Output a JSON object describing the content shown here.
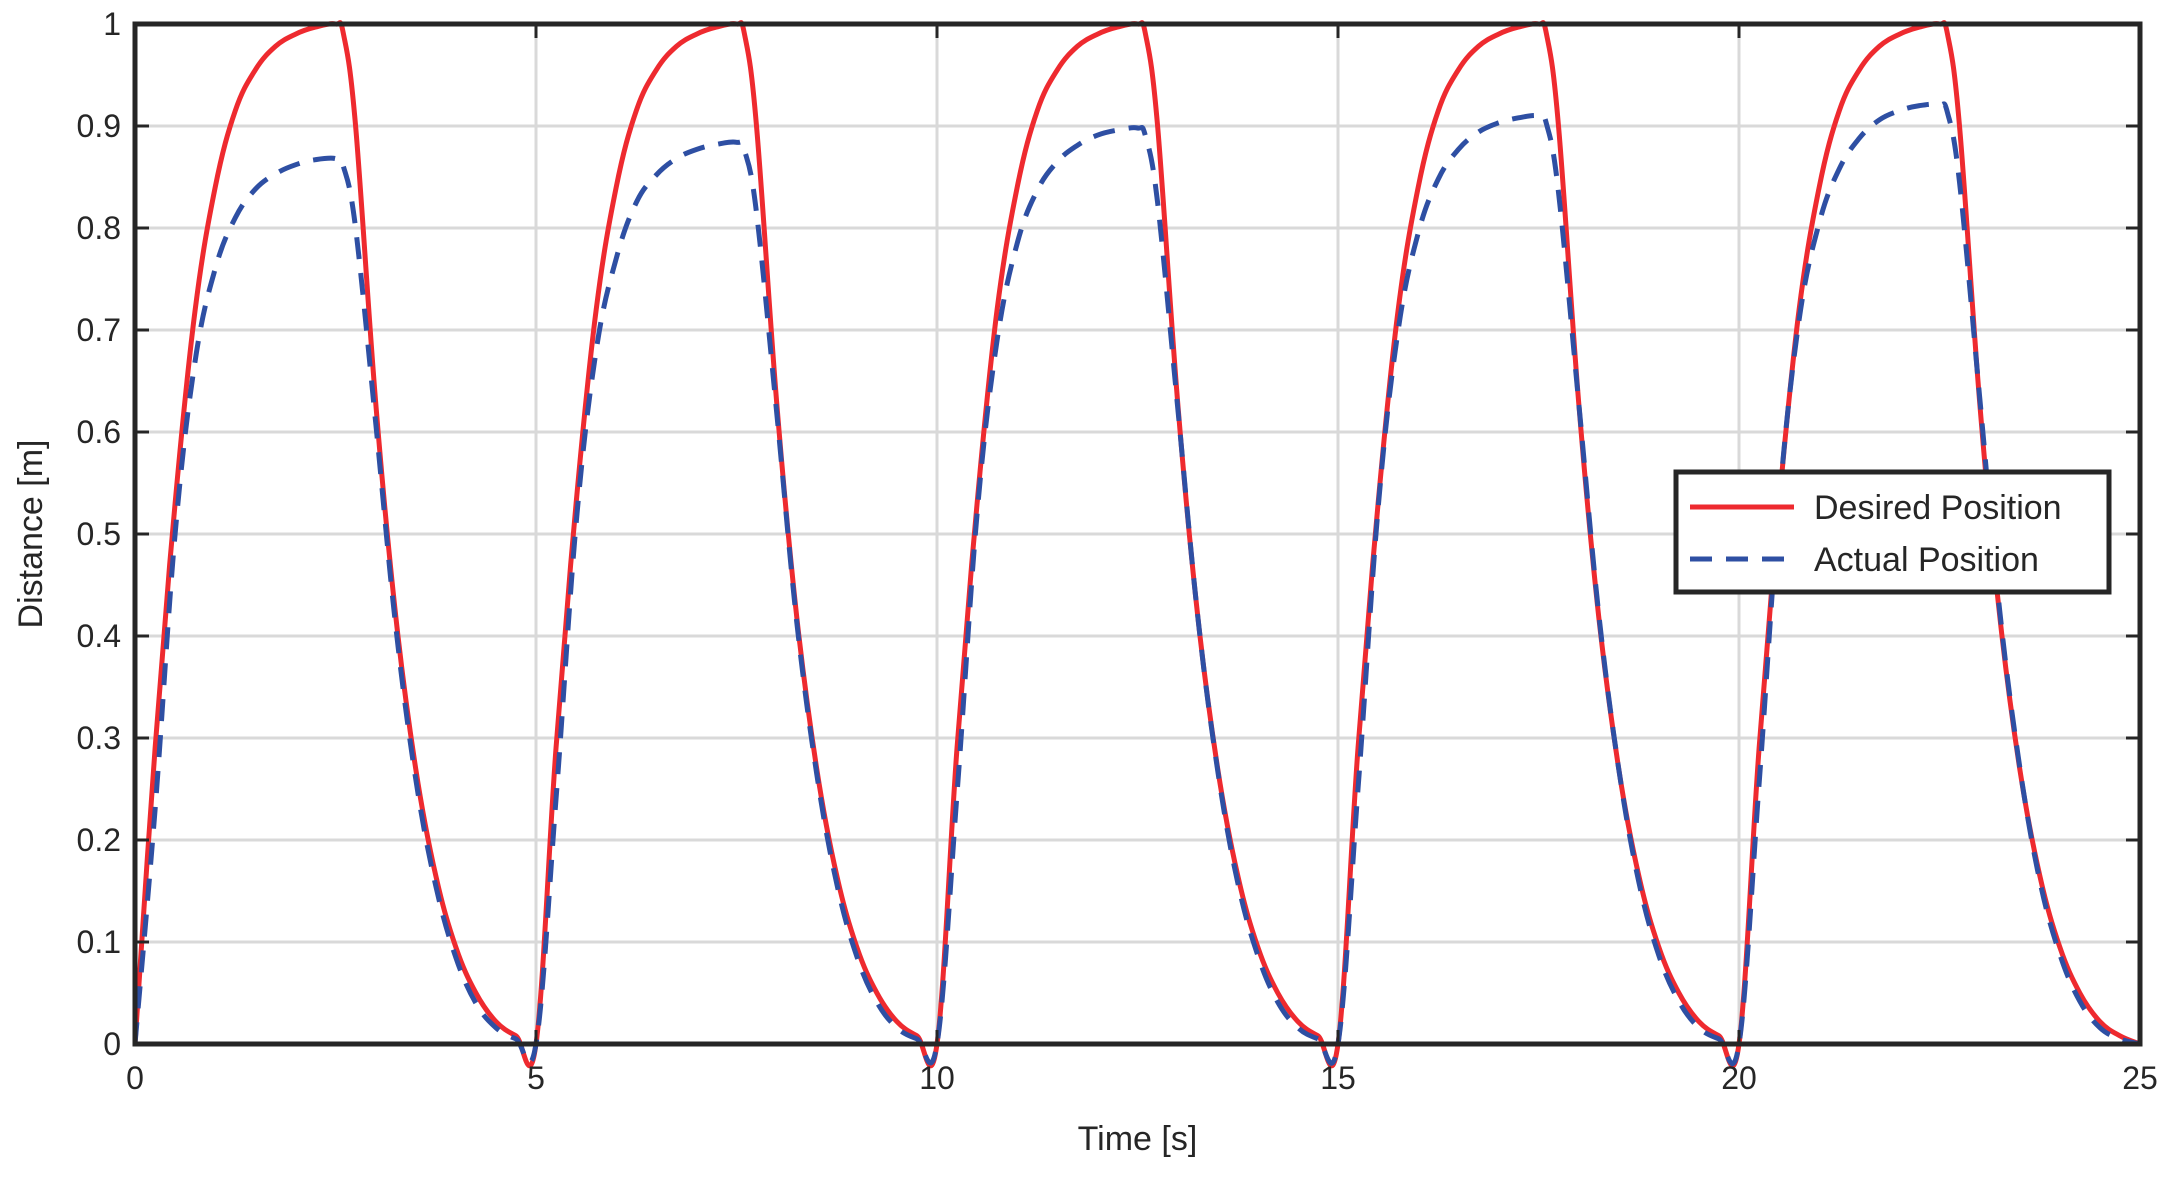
{
  "chart_data": {
    "type": "line",
    "title": "",
    "xlabel": "Time [s]",
    "ylabel": "Distance [m]",
    "xlim": [
      0,
      25
    ],
    "ylim": [
      0,
      1
    ],
    "xticks": [
      "0",
      "5",
      "10",
      "15",
      "20",
      "25"
    ],
    "yticks": [
      "0",
      "0.1",
      "0.2",
      "0.3",
      "0.4",
      "0.5",
      "0.6",
      "0.7",
      "0.8",
      "0.9",
      "1"
    ],
    "grid": true,
    "legend_position": "center-right",
    "period": 5,
    "series": [
      {
        "name": "Desired Position",
        "color": "#ee2a2f",
        "style": "solid",
        "x": [
          0,
          0.25,
          0.5,
          0.75,
          1.0,
          1.25,
          1.5,
          1.75,
          2.0,
          2.25,
          2.5,
          2.6,
          2.75,
          3.0,
          3.25,
          3.5,
          3.75,
          4.0,
          4.25,
          4.5,
          4.75,
          5.0,
          5.25,
          5.5,
          5.75,
          6.0,
          6.25,
          6.5,
          6.75,
          7.0,
          7.25,
          7.5,
          7.6,
          7.75,
          8.0,
          8.25,
          8.5,
          8.75,
          9.0,
          9.25,
          9.5,
          9.75,
          10.0,
          10.25,
          10.5,
          10.75,
          11.0,
          11.25,
          11.5,
          11.75,
          12.0,
          12.25,
          12.5,
          12.6,
          12.75,
          13.0,
          13.25,
          13.5,
          13.75,
          14.0,
          14.25,
          14.5,
          14.75,
          15.0,
          15.25,
          15.5,
          15.75,
          16.0,
          16.25,
          16.5,
          16.75,
          17.0,
          17.25,
          17.5,
          17.6,
          17.75,
          18.0,
          18.25,
          18.5,
          18.75,
          19.0,
          19.25,
          19.5,
          19.75,
          20.0,
          20.25,
          20.5,
          20.75,
          21.0,
          21.25,
          21.5,
          21.75,
          22.0,
          22.25,
          22.5,
          22.6,
          22.75,
          23.0,
          23.25,
          23.5,
          23.75,
          24.0,
          24.25,
          24.5,
          24.75,
          25.0
        ],
        "y": [
          0,
          0.29,
          0.53,
          0.72,
          0.84,
          0.915,
          0.955,
          0.978,
          0.99,
          0.997,
          1.0,
          0.99,
          0.9,
          0.63,
          0.42,
          0.27,
          0.165,
          0.095,
          0.05,
          0.022,
          0.008,
          0,
          0.29,
          0.53,
          0.72,
          0.84,
          0.915,
          0.955,
          0.978,
          0.99,
          0.997,
          1.0,
          0.99,
          0.9,
          0.63,
          0.42,
          0.27,
          0.165,
          0.095,
          0.05,
          0.022,
          0.008,
          0,
          0.29,
          0.53,
          0.72,
          0.84,
          0.915,
          0.955,
          0.978,
          0.99,
          0.997,
          1.0,
          0.99,
          0.9,
          0.63,
          0.42,
          0.27,
          0.165,
          0.095,
          0.05,
          0.022,
          0.008,
          0,
          0.29,
          0.53,
          0.72,
          0.84,
          0.915,
          0.955,
          0.978,
          0.99,
          0.997,
          1.0,
          0.99,
          0.9,
          0.63,
          0.42,
          0.27,
          0.165,
          0.095,
          0.05,
          0.022,
          0.008,
          0,
          0.29,
          0.53,
          0.72,
          0.84,
          0.915,
          0.955,
          0.978,
          0.99,
          0.997,
          1.0,
          0.99,
          0.9,
          0.63,
          0.42,
          0.27,
          0.165,
          0.095,
          0.05,
          0.022,
          0.008,
          0
        ]
      },
      {
        "name": "Actual Position",
        "color": "#2e4fa3",
        "style": "dashed",
        "x": [
          0,
          0.25,
          0.5,
          0.75,
          1.0,
          1.25,
          1.5,
          1.75,
          2.0,
          2.25,
          2.5,
          2.6,
          2.75,
          3.0,
          3.25,
          3.5,
          3.75,
          4.0,
          4.25,
          4.5,
          4.75,
          5.0,
          5.25,
          5.5,
          5.75,
          6.0,
          6.25,
          6.5,
          6.75,
          7.0,
          7.25,
          7.5,
          7.6,
          7.75,
          8.0,
          8.25,
          8.5,
          8.75,
          9.0,
          9.25,
          9.5,
          9.75,
          10.0,
          10.25,
          10.5,
          10.75,
          11.0,
          11.25,
          11.5,
          11.75,
          12.0,
          12.25,
          12.5,
          12.6,
          12.75,
          13.0,
          13.25,
          13.5,
          13.75,
          14.0,
          14.25,
          14.5,
          14.75,
          15.0,
          15.25,
          15.5,
          15.75,
          16.0,
          16.25,
          16.5,
          16.75,
          17.0,
          17.25,
          17.5,
          17.6,
          17.75,
          18.0,
          18.25,
          18.5,
          18.75,
          19.0,
          19.25,
          19.5,
          19.75,
          20.0,
          20.25,
          20.5,
          20.75,
          21.0,
          21.25,
          21.5,
          21.75,
          22.0,
          22.25,
          22.5,
          22.6,
          22.75,
          23.0,
          23.25,
          23.5,
          23.75,
          24.0,
          24.25,
          24.5,
          24.75,
          25.0
        ],
        "y": [
          0,
          0.23,
          0.5,
          0.67,
          0.76,
          0.81,
          0.838,
          0.853,
          0.862,
          0.867,
          0.868,
          0.86,
          0.8,
          0.61,
          0.41,
          0.26,
          0.155,
          0.085,
          0.04,
          0.016,
          0.005,
          0,
          0.24,
          0.51,
          0.68,
          0.77,
          0.825,
          0.852,
          0.868,
          0.877,
          0.882,
          0.884,
          0.876,
          0.815,
          0.62,
          0.415,
          0.265,
          0.157,
          0.086,
          0.041,
          0.016,
          0.005,
          0,
          0.245,
          0.52,
          0.69,
          0.785,
          0.837,
          0.865,
          0.881,
          0.891,
          0.896,
          0.898,
          0.89,
          0.825,
          0.625,
          0.42,
          0.268,
          0.158,
          0.087,
          0.041,
          0.016,
          0.005,
          0,
          0.25,
          0.525,
          0.7,
          0.795,
          0.848,
          0.877,
          0.894,
          0.903,
          0.908,
          0.91,
          0.902,
          0.835,
          0.63,
          0.423,
          0.27,
          0.159,
          0.087,
          0.042,
          0.016,
          0.005,
          0,
          0.255,
          0.53,
          0.71,
          0.805,
          0.858,
          0.888,
          0.906,
          0.915,
          0.92,
          0.921,
          0.913,
          0.845,
          0.635,
          0.425,
          0.272,
          0.16,
          0.088,
          0.042,
          0.016,
          0.005,
          0
        ]
      }
    ]
  }
}
